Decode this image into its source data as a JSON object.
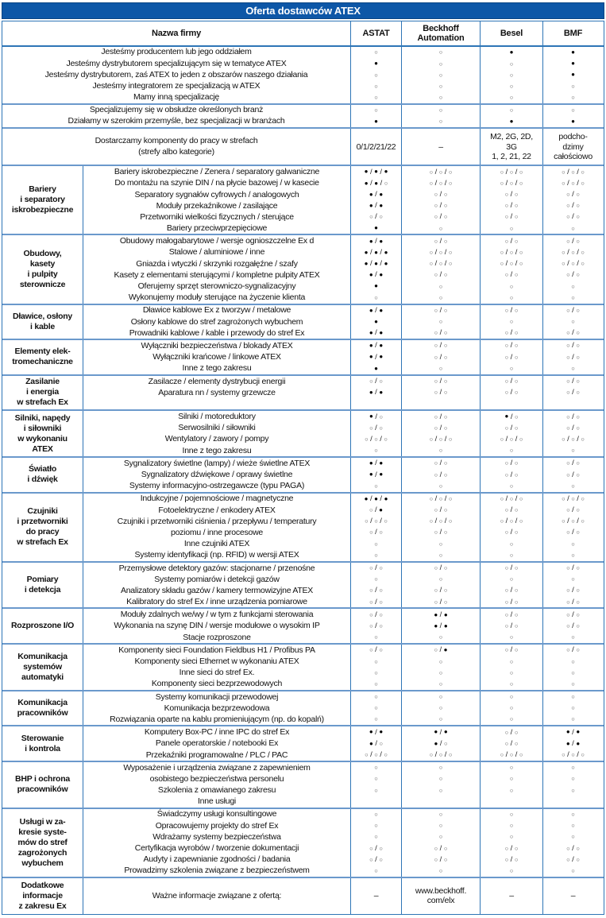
{
  "title": "Oferta dostawców ATEX",
  "colors": {
    "title_bg": "#0d57a7",
    "grid_line": "#2e75b6",
    "section_line": "#6b99cc",
    "text": "#111111"
  },
  "header": {
    "name_col": "Nazwa firmy",
    "vendors": [
      "ASTAT",
      "Beckhoff\nAutomation",
      "Besel",
      "BMF"
    ]
  },
  "intro_blocks": [
    {
      "rows": [
        {
          "label": "Jesteśmy producentem lub jego oddziałem",
          "cells": [
            "○",
            "○",
            "●",
            "●"
          ]
        },
        {
          "label": "Jesteśmy dystrybutorem specjalizującym się w tematyce ATEX",
          "cells": [
            "●",
            "○",
            "○",
            "●"
          ]
        },
        {
          "label": "Jesteśmy dystrybutorem, zaś ATEX to jeden z obszarów naszego działania",
          "cells": [
            "○",
            "○",
            "○",
            "●"
          ]
        },
        {
          "label": "Jesteśmy integratorem ze specjalizacją w ATEX",
          "cells": [
            "○",
            "○",
            "○",
            "○"
          ]
        },
        {
          "label": "Mamy inną specjalizację",
          "cells": [
            "○",
            "○",
            "○",
            "○"
          ]
        }
      ]
    },
    {
      "rows": [
        {
          "label": "Specjalizujemy się w obsłudze określonych branż",
          "cells": [
            "○",
            "○",
            "○",
            "○"
          ]
        },
        {
          "label": "Działamy w szerokim przemyśle, bez specjalizacji w branżach",
          "cells": [
            "●",
            "○",
            "●",
            "●"
          ]
        }
      ]
    },
    {
      "tall": true,
      "rows": [
        {
          "label": "Dostarczamy komponenty do pracy w strefach\n(strefy albo kategorie)",
          "cells": [
            "0/1/2/21/22",
            "–",
            "M2, 2G, 2D,\n3G\n1, 2, 21, 22",
            "podcho-\ndzimy\ncałościowo"
          ]
        }
      ]
    }
  ],
  "sections": [
    {
      "label": "Bariery\ni separatory\niskrobezpieczne",
      "rows": [
        {
          "label": "Bariery iskrobezpieczne / Zenera / separatory galwaniczne",
          "cells": [
            "●/●/●",
            "○/○/○",
            "○/○/○",
            "○/○/○"
          ]
        },
        {
          "label": "Do montażu na szynie DIN / na płycie bazowej / w kasecie",
          "cells": [
            "●/●/○",
            "○/○/○",
            "○/○/○",
            "○/○/○"
          ]
        },
        {
          "label": "Separatory sygnałów cyfrowych / analogowych",
          "cells": [
            "●/●",
            "○/○",
            "○/○",
            "○/○"
          ]
        },
        {
          "label": "Moduły przekaźnikowe / zasilające",
          "cells": [
            "●/●",
            "○/○",
            "○/○",
            "○/○"
          ]
        },
        {
          "label": "Przetworniki wielkości fizycznych / sterujące",
          "cells": [
            "○/○",
            "○/○",
            "○/○",
            "○/○"
          ]
        },
        {
          "label": "Bariery przeciwprzepięciowe",
          "cells": [
            "●",
            "○",
            "○",
            "○"
          ]
        }
      ]
    },
    {
      "label": "Obudowy,\nkasety\ni pulpity\nsterownicze",
      "rows": [
        {
          "label": "Obudowy małogabarytowe / wersje ognioszczelne Ex d",
          "cells": [
            "●/●",
            "○/○",
            "○/○",
            "○/○"
          ]
        },
        {
          "label": "Stalowe / aluminiowe / inne",
          "cells": [
            "●/●/●",
            "○/○/○",
            "○/○/○",
            "○/○/○"
          ]
        },
        {
          "label": "Gniazda i wtyczki / skrzynki rozgałęźne / szafy",
          "cells": [
            "●/●/●",
            "○/○/○",
            "○/○/○",
            "○/○/○"
          ]
        },
        {
          "label": "Kasety z elementami sterującymi / kompletne pulpity ATEX",
          "cells": [
            "●/●",
            "○/○",
            "○/○",
            "○/○"
          ]
        },
        {
          "label": "Oferujemy sprzęt sterowniczo-sygnalizacyjny",
          "cells": [
            "●",
            "○",
            "○",
            "○"
          ]
        },
        {
          "label": "Wykonujemy moduły sterujące na życzenie klienta",
          "cells": [
            "○",
            "○",
            "○",
            "○"
          ]
        }
      ]
    },
    {
      "label": "Dławice, osłony\ni kable",
      "rows": [
        {
          "label": "Dławice kablowe Ex z tworzyw / metalowe",
          "cells": [
            "●/●",
            "○/○",
            "○/○",
            "○/○"
          ]
        },
        {
          "label": "Osłony kablowe do stref zagrożonych wybuchem",
          "cells": [
            "●",
            "○",
            "○",
            "○"
          ]
        },
        {
          "label": "Prowadniki kablowe / kable i przewody do stref Ex",
          "cells": [
            "●/●",
            "○/○",
            "○/○",
            "○/○"
          ]
        }
      ]
    },
    {
      "label": "Elementy elek-\ntromechaniczne",
      "rows": [
        {
          "label": "Wyłączniki bezpieczeństwa / blokady ATEX",
          "cells": [
            "●/●",
            "○/○",
            "○/○",
            "○/○"
          ]
        },
        {
          "label": "Wyłączniki krańcowe / linkowe ATEX",
          "cells": [
            "●/●",
            "○/○",
            "○/○",
            "○/○"
          ]
        },
        {
          "label": "Inne z tego zakresu",
          "cells": [
            "●",
            "○",
            "○",
            "○"
          ]
        }
      ]
    },
    {
      "label": "Zasilanie\ni energia\nw strefach Ex",
      "rows": [
        {
          "label": "Zasilacze / elementy dystrybucji energii",
          "cells": [
            "○/○",
            "○/○",
            "○/○",
            "○/○"
          ]
        },
        {
          "label": "Aparatura nn / systemy grzewcze",
          "cells": [
            "●/●",
            "○/○",
            "○/○",
            "○/○"
          ]
        },
        {
          "label": "",
          "cells": [
            "",
            "",
            "",
            ""
          ]
        }
      ]
    },
    {
      "label": "Silniki, napędy\ni siłowniki\nw wykonaniu\nATEX",
      "rows": [
        {
          "label": "Silniki / motoreduktory",
          "cells": [
            "●/○",
            "○/○",
            "●/○",
            "○/○"
          ]
        },
        {
          "label": "Serwosilniki / siłowniki",
          "cells": [
            "○/○",
            "○/○",
            "○/○",
            "○/○"
          ]
        },
        {
          "label": "Wentylatory / zawory / pompy",
          "cells": [
            "○/○/○",
            "○/○/○",
            "○/○/○",
            "○/○/○"
          ]
        },
        {
          "label": "Inne z tego zakresu",
          "cells": [
            "○",
            "○",
            "○",
            "○"
          ]
        }
      ]
    },
    {
      "label": "Światło\ni dźwięk",
      "rows": [
        {
          "label": "Sygnalizatory świetlne (lampy) / wieże świetlne ATEX",
          "cells": [
            "●/●",
            "○/○",
            "○/○",
            "○/○"
          ]
        },
        {
          "label": "Sygnalizatory dźwiękowe / oprawy świetlne",
          "cells": [
            "●/●",
            "○/○",
            "○/○",
            "○/○"
          ]
        },
        {
          "label": "Systemy informacyjno-ostrzegawcze (typu PAGA)",
          "cells": [
            "○",
            "○",
            "○",
            "○"
          ]
        }
      ]
    },
    {
      "label": "Czujniki\ni przetworniki\ndo pracy\nw strefach Ex",
      "rows": [
        {
          "label": "Indukcyjne / pojemnościowe / magnetyczne",
          "cells": [
            "●/●/●",
            "○/○/○",
            "○/○/○",
            "○/○/○"
          ]
        },
        {
          "label": "Fotoelektryczne / enkodery ATEX",
          "cells": [
            "○/●",
            "○/○",
            "○/○",
            "○/○"
          ]
        },
        {
          "label": "Czujniki i przetworniki ciśnienia / przepływu / temperatury",
          "cells": [
            "○/○/○",
            "○/○/○",
            "○/○/○",
            "○/○/○"
          ]
        },
        {
          "label": "poziomu / inne procesowe",
          "cells": [
            "○/○",
            "○/○",
            "○/○",
            "○/○"
          ]
        },
        {
          "label": "Inne czujniki ATEX",
          "cells": [
            "○",
            "○",
            "○",
            "○"
          ]
        },
        {
          "label": "Systemy identyfikacji (np. RFID) w wersji ATEX",
          "cells": [
            "○",
            "○",
            "○",
            "○"
          ]
        }
      ]
    },
    {
      "label": "Pomiary\ni detekcja",
      "rows": [
        {
          "label": "Przemysłowe detektory gazów: stacjonarne / przenośne",
          "cells": [
            "○/○",
            "○/○",
            "○/○",
            "○/○"
          ]
        },
        {
          "label": "Systemy pomiarów i detekcji gazów",
          "cells": [
            "○",
            "○",
            "○",
            "○"
          ]
        },
        {
          "label": "Analizatory składu gazów / kamery termowizyjne ATEX",
          "cells": [
            "○/○",
            "○/○",
            "○/○",
            "○/○"
          ]
        },
        {
          "label": "Kalibratory do stref Ex / inne urządzenia pomiarowe",
          "cells": [
            "○/○",
            "○/○",
            "○/○",
            "○/○"
          ]
        }
      ]
    },
    {
      "label": "Rozproszone I/O",
      "rows": [
        {
          "label": "Moduły zdalnych we/wy / w tym z funkcjami sterowania",
          "cells": [
            "○/○",
            "●/●",
            "○/○",
            "○/○"
          ]
        },
        {
          "label": "Wykonania na szynę DIN / wersje modułowe o wysokim IP",
          "cells": [
            "○/○",
            "●/●",
            "○/○",
            "○/○"
          ]
        },
        {
          "label": "Stacje rozproszone",
          "cells": [
            "○",
            "○",
            "○",
            "○"
          ]
        }
      ]
    },
    {
      "label": "Komunikacja\nsystemów\nautomatyki",
      "rows": [
        {
          "label": "Komponenty sieci Foundation Fieldbus H1 / Profibus PA",
          "cells": [
            "○/○",
            "○/●",
            "○/○",
            "○/○"
          ]
        },
        {
          "label": "Komponenty sieci Ethernet w wykonaniu ATEX",
          "cells": [
            "○",
            "○",
            "○",
            "○"
          ]
        },
        {
          "label": "Inne sieci do stref Ex.",
          "cells": [
            "○",
            "○",
            "○",
            "○"
          ]
        },
        {
          "label": "Komponenty sieci bezprzewodowych",
          "cells": [
            "○",
            "○",
            "○",
            "○"
          ]
        }
      ]
    },
    {
      "label": "Komunikacja\npracowników",
      "rows": [
        {
          "label": "Systemy komunikacji przewodowej",
          "cells": [
            "○",
            "○",
            "○",
            "○"
          ]
        },
        {
          "label": "Komunikacja bezprzewodowa",
          "cells": [
            "○",
            "○",
            "○",
            "○"
          ]
        },
        {
          "label": "Rozwiązania oparte na kablu promieniującym (np. do kopalń)",
          "cells": [
            "○",
            "○",
            "○",
            "○"
          ]
        }
      ]
    },
    {
      "label": "Sterowanie\ni kontrola",
      "rows": [
        {
          "label": "Komputery Box-PC / inne IPC do stref Ex",
          "cells": [
            "●/●",
            "●/●",
            "○/○",
            "●/●"
          ]
        },
        {
          "label": "Panele operatorskie / notebooki Ex",
          "cells": [
            "●/○",
            "●/○",
            "○/○",
            "●/●"
          ]
        },
        {
          "label": "Przekaźniki programowalne / PLC / PAC",
          "cells": [
            "○/○/○",
            "○/○/○",
            "○/○/○",
            "○/○/○"
          ]
        }
      ]
    },
    {
      "label": "BHP i ochrona\npracowników",
      "rows": [
        {
          "label": "Wyposażenie i urządzenia związane z zapewnieniem",
          "cells": [
            "○",
            "○",
            "○",
            "○"
          ]
        },
        {
          "label": "osobistego bezpieczeństwa personelu",
          "cells": [
            "○",
            "○",
            "○",
            "○"
          ]
        },
        {
          "label": "Szkolenia z omawianego zakresu",
          "cells": [
            "○",
            "○",
            "○",
            "○"
          ]
        },
        {
          "label": "Inne usługi",
          "cells": [
            "",
            "",
            "",
            ""
          ]
        }
      ]
    },
    {
      "label": "Usługi w za-\nkresie syste-\nmów do stref\nzagrożonych\nwybuchem",
      "rows": [
        {
          "label": "Świadczymy usługi konsultingowe",
          "cells": [
            "○",
            "○",
            "○",
            "○"
          ]
        },
        {
          "label": "Opracowujemy projekty do stref Ex",
          "cells": [
            "○",
            "○",
            "○",
            "○"
          ]
        },
        {
          "label": "Wdrażamy systemy bezpieczeństwa",
          "cells": [
            "○",
            "○",
            "○",
            "○"
          ]
        },
        {
          "label": "Certyfikacja wyrobów / tworzenie dokumentacji",
          "cells": [
            "○/○",
            "○/○",
            "○/○",
            "○/○"
          ]
        },
        {
          "label": "Audyty i zapewnianie zgodności / badania",
          "cells": [
            "○/○",
            "○/○",
            "○/○",
            "○/○"
          ]
        },
        {
          "label": "Prowadzimy szkolenia związane z bezpieczeństwem",
          "cells": [
            "○",
            "○",
            "○",
            "○"
          ]
        }
      ]
    },
    {
      "label": "Dodatkowe\ninformacje\nz zakresu Ex",
      "tall": true,
      "rows": [
        {
          "label": "Ważne informacje związane z ofertą:",
          "cells": [
            "–",
            "www.beckhoff.\ncom/elx",
            "–",
            "–"
          ]
        }
      ]
    }
  ]
}
